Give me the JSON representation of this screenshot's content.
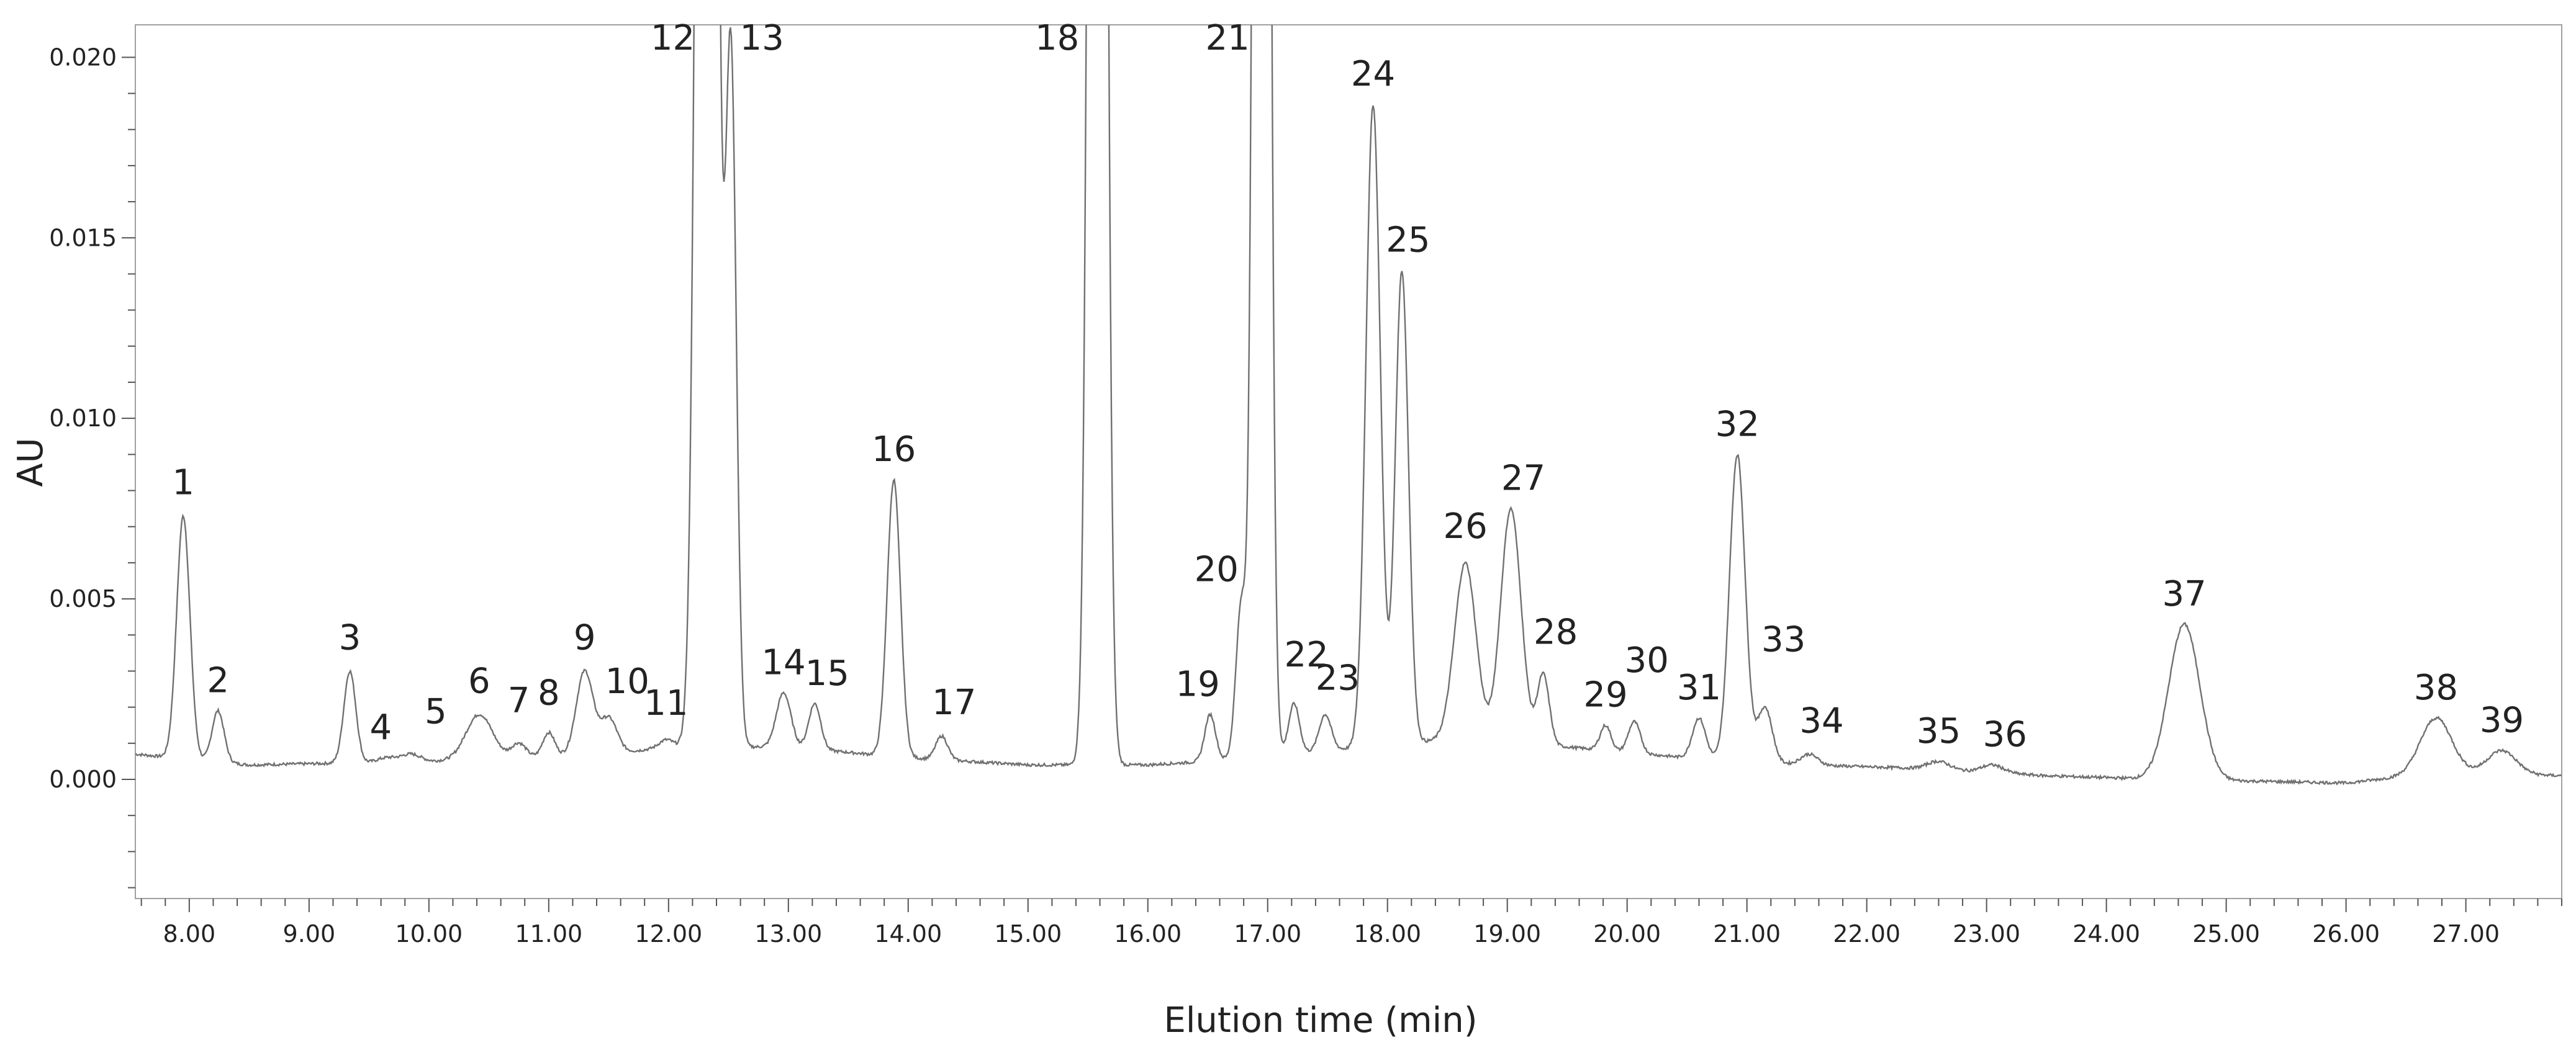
{
  "chart_data": {
    "type": "line",
    "title": "",
    "xlabel": "Elution time (min)",
    "ylabel": "AU",
    "xlim": [
      7.55,
      27.8
    ],
    "ylim": [
      -0.0033,
      0.0209
    ],
    "grid": false,
    "legend": "none",
    "x_ticks": [
      8.0,
      9.0,
      10.0,
      11.0,
      12.0,
      13.0,
      14.0,
      15.0,
      16.0,
      17.0,
      18.0,
      19.0,
      20.0,
      21.0,
      22.0,
      23.0,
      24.0,
      25.0,
      26.0,
      27.0
    ],
    "x_tick_labels": [
      "8.00",
      "9.00",
      "10.00",
      "11.00",
      "12.00",
      "13.00",
      "14.00",
      "15.00",
      "16.00",
      "17.00",
      "18.00",
      "19.00",
      "20.00",
      "21.00",
      "22.00",
      "23.00",
      "24.00",
      "25.00",
      "26.00",
      "27.00"
    ],
    "y_ticks": [
      0.0,
      0.005,
      0.01,
      0.015,
      0.02
    ],
    "y_tick_labels": [
      "0.000",
      "0.005",
      "0.010",
      "0.015",
      "0.020"
    ],
    "line_color": "#707070",
    "series": [
      {
        "baseline": [
          [
            7.55,
            0.0007
          ],
          [
            8.5,
            0.0004
          ],
          [
            10.0,
            0.0005
          ],
          [
            11.5,
            0.0007
          ],
          [
            12.0,
            0.0009
          ],
          [
            13.0,
            0.0009
          ],
          [
            14.0,
            0.0006
          ],
          [
            15.0,
            0.0004
          ],
          [
            16.0,
            0.0004
          ],
          [
            16.5,
            0.0005
          ],
          [
            17.5,
            0.0008
          ],
          [
            18.5,
            0.0011
          ],
          [
            19.5,
            0.0009
          ],
          [
            20.5,
            0.0006
          ],
          [
            21.5,
            0.0004
          ],
          [
            22.5,
            0.0003
          ],
          [
            23.5,
            0.0001
          ],
          [
            24.5,
            0.0
          ],
          [
            26.0,
            -0.0001
          ],
          [
            26.8,
            0.0002
          ],
          [
            27.8,
            0.0001
          ]
        ],
        "peaks": [
          {
            "label": "1",
            "x": 7.95,
            "y": 0.0073,
            "width": 0.055
          },
          {
            "label": "2",
            "x": 8.24,
            "y": 0.0019,
            "width": 0.05
          },
          {
            "label": "3",
            "x": 9.34,
            "y": 0.003,
            "width": 0.05
          },
          {
            "label": "4",
            "x": 9.65,
            "y": 0.0006,
            "width": 0.08
          },
          {
            "label": "5",
            "x": 9.85,
            "y": 0.0007,
            "width": 0.08
          },
          {
            "label": "6",
            "x": 10.42,
            "y": 0.0018,
            "width": 0.11
          },
          {
            "label": "7",
            "x": 10.75,
            "y": 0.001,
            "width": 0.06
          },
          {
            "label": "8",
            "x": 11.0,
            "y": 0.0013,
            "width": 0.05
          },
          {
            "label": "9",
            "x": 11.3,
            "y": 0.003,
            "width": 0.07
          },
          {
            "label": "10",
            "x": 11.5,
            "y": 0.0017,
            "width": 0.07
          },
          {
            "label": "11",
            "x": 11.98,
            "y": 0.0011,
            "width": 0.06
          },
          {
            "label": "12",
            "x": 12.32,
            "y": 0.08,
            "width": 0.065
          },
          {
            "label": "13",
            "x": 12.52,
            "y": 0.0201,
            "width": 0.045
          },
          {
            "label": "14",
            "x": 12.96,
            "y": 0.0024,
            "width": 0.06
          },
          {
            "label": "15",
            "x": 13.22,
            "y": 0.0021,
            "width": 0.05
          },
          {
            "label": "16",
            "x": 13.88,
            "y": 0.0083,
            "width": 0.055
          },
          {
            "label": "17",
            "x": 14.28,
            "y": 0.0012,
            "width": 0.05
          },
          {
            "label": "18",
            "x": 15.58,
            "y": 0.09,
            "width": 0.055
          },
          {
            "label": "19",
            "x": 16.52,
            "y": 0.0018,
            "width": 0.045
          },
          {
            "label": "20",
            "x": 16.78,
            "y": 0.0048,
            "width": 0.045
          },
          {
            "label": "21",
            "x": 16.95,
            "y": 0.09,
            "width": 0.05
          },
          {
            "label": "22",
            "x": 17.22,
            "y": 0.0021,
            "width": 0.045
          },
          {
            "label": "23",
            "x": 17.48,
            "y": 0.0018,
            "width": 0.05
          },
          {
            "label": "24",
            "x": 17.88,
            "y": 0.0187,
            "width": 0.06
          },
          {
            "label": "25",
            "x": 18.12,
            "y": 0.0141,
            "width": 0.055
          },
          {
            "label": "26",
            "x": 18.65,
            "y": 0.006,
            "width": 0.09
          },
          {
            "label": "27",
            "x": 19.03,
            "y": 0.0075,
            "width": 0.085
          },
          {
            "label": "28",
            "x": 19.3,
            "y": 0.0029,
            "width": 0.05
          },
          {
            "label": "29",
            "x": 19.82,
            "y": 0.0015,
            "width": 0.045
          },
          {
            "label": "30",
            "x": 20.06,
            "y": 0.0016,
            "width": 0.05
          },
          {
            "label": "31",
            "x": 20.6,
            "y": 0.0017,
            "width": 0.055
          },
          {
            "label": "32",
            "x": 20.92,
            "y": 0.009,
            "width": 0.065
          },
          {
            "label": "33",
            "x": 21.15,
            "y": 0.002,
            "width": 0.06
          },
          {
            "label": "34",
            "x": 21.52,
            "y": 0.0007,
            "width": 0.07
          },
          {
            "label": "35",
            "x": 22.6,
            "y": 0.0005,
            "width": 0.09
          },
          {
            "label": "36",
            "x": 23.05,
            "y": 0.0004,
            "width": 0.09
          },
          {
            "label": "37",
            "x": 24.65,
            "y": 0.0043,
            "width": 0.13
          },
          {
            "label": "38",
            "x": 26.75,
            "y": 0.0017,
            "width": 0.13
          },
          {
            "label": "39",
            "x": 27.3,
            "y": 0.0008,
            "width": 0.12
          }
        ]
      }
    ]
  }
}
